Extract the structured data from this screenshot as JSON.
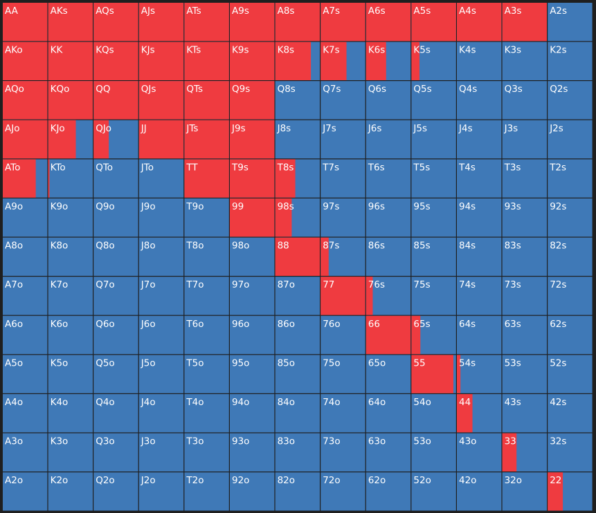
{
  "grid": {
    "colors": {
      "raise": "#ef3b40",
      "fold": "#3f79b7"
    },
    "labels": [
      [
        "AA",
        "AKs",
        "AQs",
        "AJs",
        "ATs",
        "A9s",
        "A8s",
        "A7s",
        "A6s",
        "A5s",
        "A4s",
        "A3s",
        "A2s"
      ],
      [
        "AKo",
        "KK",
        "KQs",
        "KJs",
        "KTs",
        "K9s",
        "K8s",
        "K7s",
        "K6s",
        "K5s",
        "K4s",
        "K3s",
        "K2s"
      ],
      [
        "AQo",
        "KQo",
        "QQ",
        "QJs",
        "QTs",
        "Q9s",
        "Q8s",
        "Q7s",
        "Q6s",
        "Q5s",
        "Q4s",
        "Q3s",
        "Q2s"
      ],
      [
        "AJo",
        "KJo",
        "QJo",
        "JJ",
        "JTs",
        "J9s",
        "J8s",
        "J7s",
        "J6s",
        "J5s",
        "J4s",
        "J3s",
        "J2s"
      ],
      [
        "ATo",
        "KTo",
        "QTo",
        "JTo",
        "TT",
        "T9s",
        "T8s",
        "T7s",
        "T6s",
        "T5s",
        "T4s",
        "T3s",
        "T2s"
      ],
      [
        "A9o",
        "K9o",
        "Q9o",
        "J9o",
        "T9o",
        "99",
        "98s",
        "97s",
        "96s",
        "95s",
        "94s",
        "93s",
        "92s"
      ],
      [
        "A8o",
        "K8o",
        "Q8o",
        "J8o",
        "T8o",
        "98o",
        "88",
        "87s",
        "86s",
        "85s",
        "84s",
        "83s",
        "82s"
      ],
      [
        "A7o",
        "K7o",
        "Q7o",
        "J7o",
        "T7o",
        "97o",
        "87o",
        "77",
        "76s",
        "75s",
        "74s",
        "73s",
        "72s"
      ],
      [
        "A6o",
        "K6o",
        "Q6o",
        "J6o",
        "T6o",
        "96o",
        "86o",
        "76o",
        "66",
        "65s",
        "64s",
        "63s",
        "62s"
      ],
      [
        "A5o",
        "K5o",
        "Q5o",
        "J5o",
        "T5o",
        "95o",
        "85o",
        "75o",
        "65o",
        "55",
        "54s",
        "53s",
        "52s"
      ],
      [
        "A4o",
        "K4o",
        "Q4o",
        "J4o",
        "T4o",
        "94o",
        "84o",
        "74o",
        "64o",
        "54o",
        "44",
        "43s",
        "42s"
      ],
      [
        "A3o",
        "K3o",
        "Q3o",
        "J3o",
        "T3o",
        "93o",
        "83o",
        "73o",
        "63o",
        "53o",
        "43o",
        "33",
        "32s"
      ],
      [
        "A2o",
        "K2o",
        "Q2o",
        "J2o",
        "T2o",
        "92o",
        "82o",
        "72o",
        "62o",
        "52o",
        "42o",
        "32o",
        "22"
      ]
    ],
    "raise_percent": [
      [
        100,
        100,
        100,
        100,
        100,
        100,
        100,
        100,
        100,
        100,
        100,
        100,
        0
      ],
      [
        100,
        100,
        100,
        100,
        100,
        100,
        80,
        58,
        45,
        18,
        0,
        0,
        0
      ],
      [
        100,
        100,
        100,
        100,
        100,
        100,
        0,
        0,
        0,
        0,
        0,
        0,
        0
      ],
      [
        100,
        62,
        34,
        100,
        100,
        100,
        0,
        0,
        0,
        0,
        0,
        0,
        0
      ],
      [
        74,
        3,
        0,
        0,
        100,
        100,
        45,
        0,
        0,
        0,
        0,
        0,
        0
      ],
      [
        0,
        0,
        0,
        0,
        0,
        100,
        37,
        0,
        0,
        0,
        0,
        0,
        0
      ],
      [
        0,
        0,
        0,
        0,
        0,
        0,
        100,
        18,
        0,
        0,
        0,
        0,
        0
      ],
      [
        0,
        0,
        0,
        0,
        0,
        0,
        0,
        100,
        15,
        0,
        0,
        0,
        0
      ],
      [
        0,
        0,
        0,
        0,
        0,
        0,
        0,
        0,
        100,
        20,
        0,
        0,
        0
      ],
      [
        0,
        0,
        0,
        0,
        0,
        0,
        0,
        0,
        0,
        94,
        8,
        0,
        0
      ],
      [
        0,
        0,
        0,
        0,
        0,
        0,
        0,
        0,
        0,
        0,
        35,
        0,
        0
      ],
      [
        0,
        0,
        0,
        0,
        0,
        0,
        0,
        0,
        0,
        0,
        0,
        32,
        0
      ],
      [
        0,
        0,
        0,
        0,
        0,
        0,
        0,
        0,
        0,
        0,
        0,
        0,
        34
      ]
    ]
  }
}
